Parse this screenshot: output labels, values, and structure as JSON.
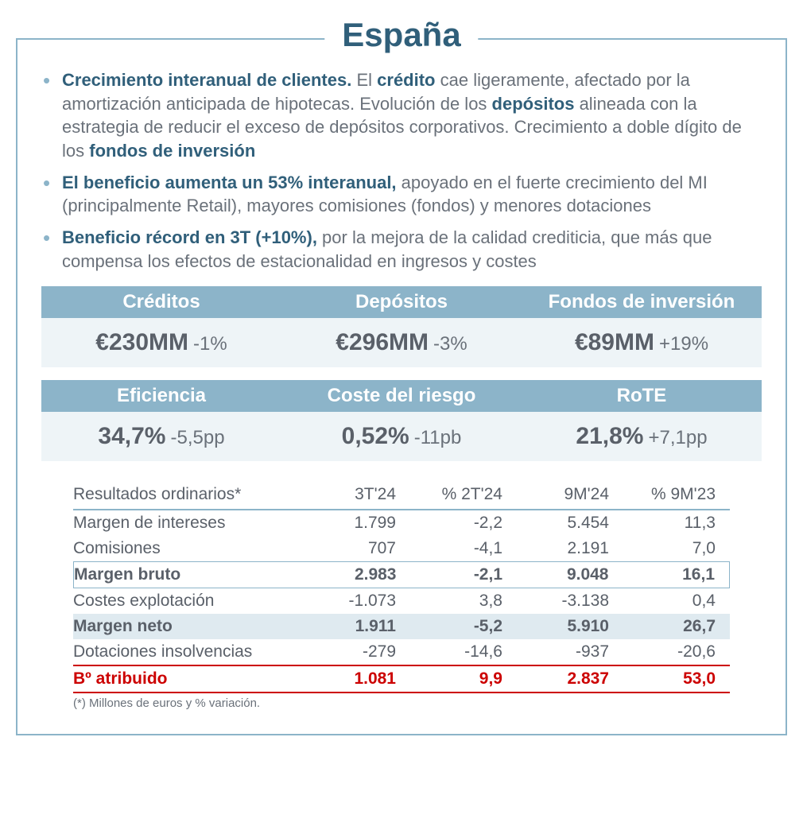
{
  "title": "España",
  "bullets": [
    {
      "lead": "Crecimiento interanual de clientes.",
      "parts": [
        {
          "t": " El ",
          "s": "plain"
        },
        {
          "t": "crédito",
          "s": "accent"
        },
        {
          "t": " cae ligeramente, afectado por la amortización anticipada de hipotecas. Evolución de los ",
          "s": "plain"
        },
        {
          "t": "depósitos",
          "s": "accent"
        },
        {
          "t": " alineada con la estrategia de reducir el exceso de depósitos corporativos. Crecimiento a doble dígito de los ",
          "s": "plain"
        },
        {
          "t": "fondos de inversión",
          "s": "accent"
        }
      ]
    },
    {
      "lead": "El beneficio aumenta un 53% interanual,",
      "parts": [
        {
          "t": " apoyado en el fuerte crecimiento del MI (principalmente Retail), mayores comisiones (fondos) y menores dotaciones",
          "s": "plain"
        }
      ]
    },
    {
      "lead": "Beneficio récord en 3T (+10%),",
      "parts": [
        {
          "t": " por la mejora de la calidad crediticia, que más que compensa los efectos de estacionalidad en ingresos y costes",
          "s": "plain"
        }
      ]
    }
  ],
  "kpi_top": {
    "headers": [
      "Créditos",
      "Depósitos",
      "Fondos de inversión"
    ],
    "values": [
      {
        "big": "€230MM",
        "delta": "-1%"
      },
      {
        "big": "€296MM",
        "delta": "-3%"
      },
      {
        "big": "€89MM",
        "delta": "+19%"
      }
    ]
  },
  "kpi_bottom": {
    "headers": [
      "Eficiencia",
      "Coste del riesgo",
      "RoTE"
    ],
    "values": [
      {
        "big": "34,7%",
        "delta": "-5,5pp"
      },
      {
        "big": "0,52%",
        "delta": "-11pb"
      },
      {
        "big": "21,8%",
        "delta": "+7,1pp"
      }
    ]
  },
  "results": {
    "columns": [
      "Resultados ordinarios*",
      "3T'24",
      "% 2T'24",
      "9M'24",
      "% 9M'23"
    ],
    "rows": [
      {
        "label": "Margen de intereses",
        "v": [
          "1.799",
          "-2,2",
          "5.454",
          "11,3"
        ],
        "style": "plain"
      },
      {
        "label": "Comisiones",
        "v": [
          "707",
          "-4,1",
          "2.191",
          "7,0"
        ],
        "style": "plain"
      },
      {
        "label": "Margen bruto",
        "v": [
          "2.983",
          "-2,1",
          "9.048",
          "16,1"
        ],
        "style": "outline-bold"
      },
      {
        "label": "Costes explotación",
        "v": [
          "-1.073",
          "3,8",
          "-3.138",
          "0,4"
        ],
        "style": "plain"
      },
      {
        "label": "Margen neto",
        "v": [
          "1.911",
          "-5,2",
          "5.910",
          "26,7"
        ],
        "style": "filled"
      },
      {
        "label": "Dotaciones insolvencias",
        "v": [
          "-279",
          "-14,6",
          "-937",
          "-20,6"
        ],
        "style": "plain"
      },
      {
        "label": "Bº atribuido",
        "v": [
          "1.081",
          "9,9",
          "2.837",
          "53,0"
        ],
        "style": "red"
      }
    ],
    "footnote": "(*) Millones de euros y % variación."
  },
  "colors": {
    "header_bg": "#8cb4c9",
    "value_bg": "#eef4f7",
    "accent_text": "#305f7a",
    "body_text": "#6a717a",
    "red": "#cc0000"
  }
}
